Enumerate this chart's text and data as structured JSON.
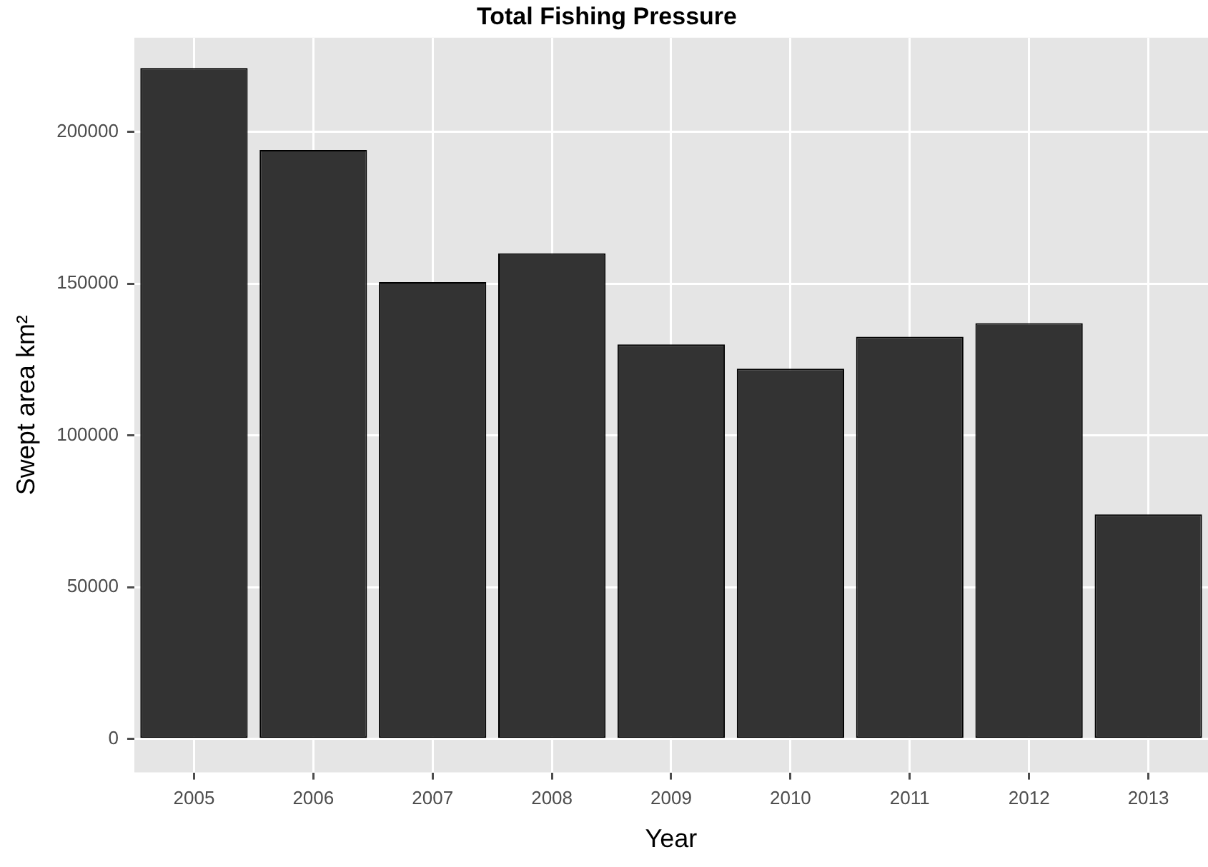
{
  "chart_data": {
    "type": "bar",
    "title": "Total Fishing Pressure",
    "xlabel": "Year",
    "ylabel": "Swept area km²",
    "categories": [
      "2005",
      "2006",
      "2007",
      "2008",
      "2009",
      "2010",
      "2011",
      "2012",
      "2013"
    ],
    "values": [
      221000,
      194000,
      150500,
      160000,
      130000,
      122000,
      132500,
      137000,
      74000
    ],
    "color": "#333333",
    "ylim": [
      -11000,
      231000
    ],
    "yticks": [
      0,
      50000,
      100000,
      150000,
      200000
    ],
    "grid": true,
    "legend": false
  }
}
